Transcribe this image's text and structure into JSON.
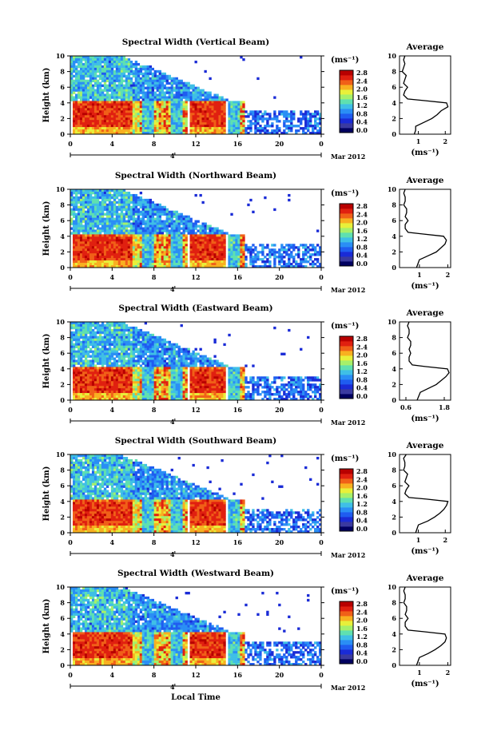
{
  "colors": {
    "colorbar": [
      "#000060",
      "#3a3aa0",
      "#1a2bd6",
      "#1f5cf0",
      "#2a8ef5",
      "#3fbfe6",
      "#5fe0b0",
      "#a6f06a",
      "#e8f03a",
      "#f8b020",
      "#f06018",
      "#e02010",
      "#b80000"
    ],
    "line": "#000000",
    "background": "#ffffff"
  },
  "chart_data": [
    {
      "type": "heatmap",
      "title": "Spectral Width (Vertical Beam)",
      "ylabel": "Height (km)",
      "x_ticks": [
        "0",
        "4",
        "8",
        "12",
        "16",
        "20",
        "0"
      ],
      "y_ticks": [
        "0",
        "2",
        "4",
        "6",
        "8",
        "10"
      ],
      "date_tick": "4",
      "date_label": "Mar 2012",
      "colorbar": {
        "unit": "(ms⁻¹)",
        "ticks": [
          "0.0",
          "0.4",
          "0.8",
          "1.2",
          "1.6",
          "2.0",
          "2.4",
          "2.8"
        ]
      },
      "profile": {
        "title": "Average",
        "xlabel": "(ms⁻¹)",
        "x_ticks": [
          "1",
          "2"
        ],
        "xlim": [
          0.3,
          2.2
        ],
        "y_ticks": [
          "0",
          "2",
          "4",
          "6",
          "8",
          "10"
        ],
        "heights": [
          0,
          0.5,
          1,
          1.5,
          2,
          2.5,
          3,
          3.5,
          4,
          4.3,
          4.5,
          5,
          5.5,
          6,
          6.5,
          7,
          7.5,
          8,
          8.5,
          9,
          9.5,
          10
        ],
        "values": [
          0.85,
          0.9,
          0.9,
          1.2,
          1.5,
          1.7,
          1.85,
          2.1,
          2.05,
          1.2,
          0.6,
          0.45,
          0.5,
          0.6,
          0.45,
          0.5,
          0.55,
          0.4,
          0.45,
          0.5,
          0.45,
          0.5
        ]
      }
    },
    {
      "type": "heatmap",
      "title": "Spectral Width (Northward Beam)",
      "ylabel": "Height (km)",
      "x_ticks": [
        "0",
        "4",
        "8",
        "12",
        "16",
        "20",
        "0"
      ],
      "y_ticks": [
        "0",
        "2",
        "4",
        "6",
        "8",
        "10"
      ],
      "date_tick": "4",
      "date_label": "Mar 2012",
      "colorbar": {
        "unit": "(ms⁻¹)",
        "ticks": [
          "0.0",
          "0.4",
          "0.8",
          "1.2",
          "1.6",
          "2.0",
          "2.4",
          "2.8"
        ]
      },
      "profile": {
        "title": "Average",
        "xlabel": "(ms⁻¹)",
        "x_ticks": [
          "1",
          "2"
        ],
        "xlim": [
          0.3,
          2.1
        ],
        "heights": [
          0,
          0.5,
          1,
          1.5,
          2,
          2.5,
          3,
          3.5,
          4,
          4.3,
          4.5,
          5,
          5.5,
          6,
          6.5,
          7,
          7.5,
          8,
          8.5,
          9,
          9.5,
          10
        ],
        "values": [
          0.9,
          0.95,
          1.0,
          1.3,
          1.6,
          1.75,
          1.9,
          1.95,
          1.85,
          1.1,
          0.6,
          0.5,
          0.5,
          0.6,
          0.5,
          0.55,
          0.55,
          0.45,
          0.5,
          0.5,
          0.45,
          0.5
        ]
      }
    },
    {
      "type": "heatmap",
      "title": "Spectral Width (Eastward Beam)",
      "ylabel": "Height (km)",
      "x_ticks": [
        "0",
        "4",
        "8",
        "12",
        "16",
        "20",
        "0"
      ],
      "y_ticks": [
        "0",
        "2",
        "4",
        "6",
        "8",
        "10"
      ],
      "date_tick": "4",
      "date_label": "Mar 2012",
      "colorbar": {
        "unit": "(ms⁻¹)",
        "ticks": [
          "0.0",
          "0.4",
          "0.8",
          "1.2",
          "1.6",
          "2.0",
          "2.4",
          "2.8"
        ]
      },
      "profile": {
        "title": "Average",
        "xlabel": "(ms⁻¹)",
        "x_ticks": [
          "0.6",
          "1.8"
        ],
        "xlim": [
          0.4,
          2.0
        ],
        "heights": [
          0,
          0.5,
          1,
          1.5,
          2,
          2.5,
          3,
          3.5,
          4,
          4.3,
          4.5,
          5,
          5.5,
          6,
          6.5,
          7,
          7.5,
          8,
          8.5,
          9,
          9.5,
          10
        ],
        "values": [
          0.95,
          1.0,
          1.05,
          1.3,
          1.55,
          1.7,
          1.85,
          1.95,
          1.9,
          1.2,
          0.8,
          0.7,
          0.7,
          0.75,
          0.7,
          0.75,
          0.75,
          0.65,
          0.7,
          0.7,
          0.65,
          0.7
        ]
      }
    },
    {
      "type": "heatmap",
      "title": "Spectral Width (Southward Beam)",
      "ylabel": "Height (km)",
      "x_ticks": [
        "0",
        "4",
        "8",
        "12",
        "16",
        "20",
        "0"
      ],
      "y_ticks": [
        "0",
        "2",
        "4",
        "6",
        "8",
        "10"
      ],
      "date_tick": "4",
      "date_label": "Mar 2012",
      "colorbar": {
        "unit": "(ms⁻¹)",
        "ticks": [
          "0.0",
          "0.4",
          "0.8",
          "1.2",
          "1.6",
          "2.0",
          "2.4",
          "2.8"
        ]
      },
      "profile": {
        "title": "Average",
        "xlabel": "(ms⁻¹)",
        "x_ticks": [
          "1",
          "2"
        ],
        "xlim": [
          0.3,
          2.2
        ],
        "heights": [
          0,
          0.5,
          1,
          1.5,
          2,
          2.5,
          3,
          3.5,
          4,
          4.3,
          4.5,
          5,
          5.5,
          6,
          6.5,
          7,
          7.5,
          8,
          8.5,
          9,
          9.5,
          10
        ],
        "values": [
          0.9,
          0.95,
          1.0,
          1.35,
          1.6,
          1.8,
          1.95,
          2.05,
          2.1,
          1.3,
          0.65,
          0.5,
          0.55,
          0.65,
          0.5,
          0.55,
          0.6,
          0.45,
          0.5,
          0.5,
          0.45,
          0.55
        ]
      }
    },
    {
      "type": "heatmap",
      "title": "Spectral Width (Westward Beam)",
      "ylabel": "Height (km)",
      "xlabel": "Local Time",
      "x_ticks": [
        "0",
        "4",
        "8",
        "12",
        "16",
        "20",
        "0"
      ],
      "y_ticks": [
        "0",
        "2",
        "4",
        "6",
        "8",
        "10"
      ],
      "date_tick": "4",
      "date_label": "Mar 2012",
      "colorbar": {
        "unit": "(ms⁻¹)",
        "ticks": [
          "0.0",
          "0.4",
          "0.8",
          "1.2",
          "1.6",
          "2.0",
          "2.4",
          "2.8"
        ]
      },
      "profile": {
        "title": "Average",
        "xlabel": "(ms⁻¹)",
        "x_ticks": [
          "1",
          "2"
        ],
        "xlim": [
          0.3,
          2.1
        ],
        "heights": [
          0,
          0.5,
          1,
          1.5,
          2,
          2.5,
          3,
          3.5,
          4,
          4.3,
          4.5,
          5,
          5.5,
          6,
          6.5,
          7,
          7.5,
          8,
          8.5,
          9,
          9.5,
          10
        ],
        "values": [
          0.9,
          0.95,
          1.0,
          1.3,
          1.55,
          1.75,
          1.9,
          1.95,
          1.9,
          1.15,
          0.6,
          0.5,
          0.5,
          0.6,
          0.5,
          0.55,
          0.55,
          0.45,
          0.5,
          0.5,
          0.45,
          0.5
        ]
      }
    }
  ]
}
